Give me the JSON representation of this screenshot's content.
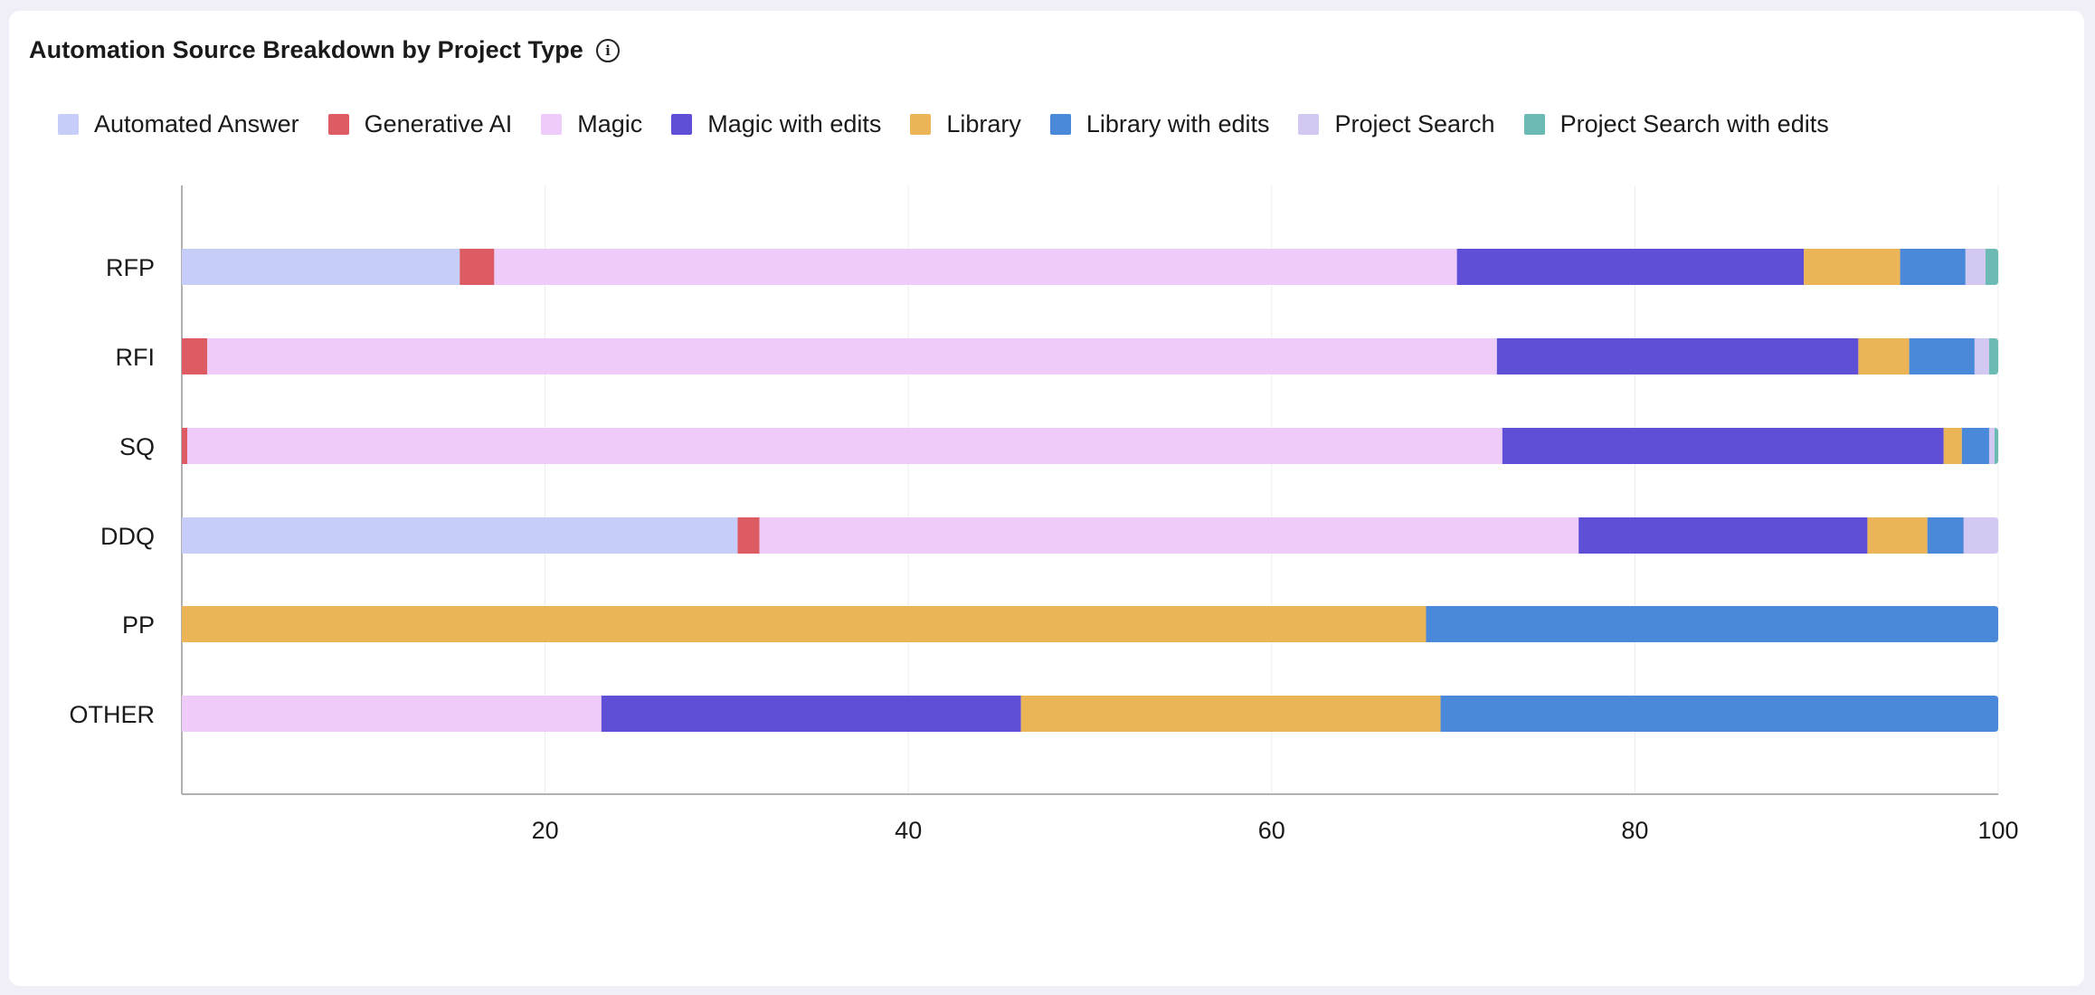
{
  "header": {
    "title": "Automation Source Breakdown by Project Type",
    "info_icon": "info-icon"
  },
  "colors": {
    "Automated Answer": "#c5cdf8",
    "Generative AI": "#dd5c64",
    "Magic": "#eecbf8",
    "Magic with edits": "#5f4fd6",
    "Library": "#ebb456",
    "Library with edits": "#4a88d9",
    "Project Search": "#d2c8f1",
    "Project Search with edits": "#6bbab4"
  },
  "chart_data": {
    "type": "bar",
    "orientation": "horizontal",
    "stacked": true,
    "title": "Automation Source Breakdown by Project Type",
    "xlabel": "",
    "ylabel": "",
    "xlim": [
      0,
      100
    ],
    "x_ticks": [
      20,
      40,
      60,
      80,
      100
    ],
    "grid": true,
    "legend_position": "top",
    "categories": [
      "RFP",
      "RFI",
      "SQ",
      "DDQ",
      "PP",
      "OTHER"
    ],
    "series": [
      {
        "name": "Automated Answer",
        "values": [
          15.3,
          0,
          0,
          30.6,
          0,
          0
        ]
      },
      {
        "name": "Generative AI",
        "values": [
          1.9,
          1.4,
          0.3,
          1.2,
          0,
          0
        ]
      },
      {
        "name": "Magic",
        "values": [
          53.0,
          71.0,
          72.4,
          45.1,
          0,
          23.1
        ]
      },
      {
        "name": "Magic with edits",
        "values": [
          19.1,
          19.9,
          24.3,
          15.9,
          0,
          23.1
        ]
      },
      {
        "name": "Library",
        "values": [
          5.3,
          2.8,
          1.0,
          3.3,
          68.5,
          23.1
        ]
      },
      {
        "name": "Library with edits",
        "values": [
          3.6,
          3.6,
          1.5,
          2.0,
          31.5,
          30.7
        ]
      },
      {
        "name": "Project Search",
        "values": [
          1.1,
          0.8,
          0.3,
          1.9,
          0,
          0
        ]
      },
      {
        "name": "Project Search with edits",
        "values": [
          0.7,
          0.5,
          0.2,
          0,
          0,
          0
        ]
      }
    ]
  }
}
